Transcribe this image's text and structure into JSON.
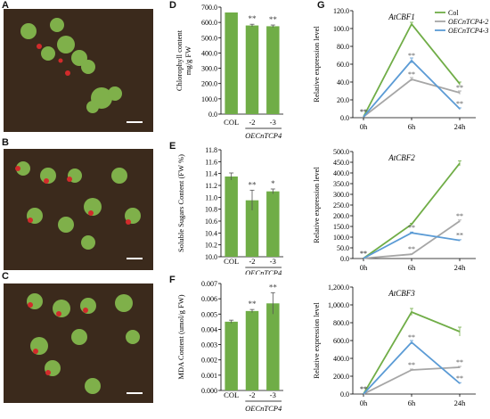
{
  "panel_letters": {
    "A": "A",
    "B": "B",
    "C": "C",
    "D": "D",
    "E": "E",
    "F": "F",
    "G": "G"
  },
  "colors": {
    "bar": "#70ad47",
    "col": "#70ad47",
    "oe2": "#a6a6a6",
    "oe3": "#5b9bd5",
    "soil": "#3b2a1c"
  },
  "chart_data": [
    {
      "id": "D",
      "type": "bar",
      "categories": [
        "COL",
        "-2",
        "-3"
      ],
      "values": [
        665,
        580,
        575
      ],
      "errors": [
        0,
        8,
        8
      ],
      "sig": [
        "",
        "**",
        "**"
      ],
      "ylabel": "Chlorophyll content\nmg/g FW",
      "ylim": [
        0,
        700
      ],
      "yticks": [
        "0.0",
        "100.0",
        "200.0",
        "300.0",
        "400.0",
        "500.0",
        "600.0",
        "700.0"
      ],
      "group_label": "OECnTCP4"
    },
    {
      "id": "E",
      "type": "bar",
      "categories": [
        "COL",
        "-2",
        "-3"
      ],
      "values": [
        11.35,
        10.95,
        11.1
      ],
      "errors": [
        0.06,
        0.17,
        0.04
      ],
      "sig": [
        "",
        "**",
        "*"
      ],
      "ylabel": "Soluble Sugars Content (FW %)",
      "ylim": [
        10.0,
        11.8
      ],
      "yticks": [
        "10.0",
        "10.2",
        "10.4",
        "10.6",
        "10.8",
        "11.0",
        "11.2",
        "11.4",
        "11.6",
        "11.8"
      ],
      "group_label": "OECnTCP4"
    },
    {
      "id": "F",
      "type": "bar",
      "categories": [
        "COL",
        "-2",
        "-3"
      ],
      "values": [
        0.0045,
        0.0052,
        0.0057
      ],
      "errors": [
        0.0001,
        0.0001,
        0.0007
      ],
      "sig": [
        "",
        "**",
        "**"
      ],
      "ylabel": "MDA Content (umol/g FW)",
      "ylim": [
        0,
        0.007
      ],
      "yticks": [
        "0.000",
        "0.001",
        "0.002",
        "0.003",
        "0.004",
        "0.005",
        "0.006",
        "0.007"
      ],
      "group_label": "OECnTCP4"
    },
    {
      "id": "G1",
      "type": "line",
      "title": "AtCBF1",
      "x": [
        "0h",
        "6h",
        "24h"
      ],
      "ylabel": "Relative expression level",
      "ylim": [
        0,
        120
      ],
      "yticks": [
        "0.0",
        "20.0",
        "40.0",
        "60.0",
        "80.0",
        "100.0",
        "120.0"
      ],
      "series": [
        {
          "name": "Col",
          "values": [
            1,
            105,
            38
          ],
          "errors": [
            0,
            2,
            2
          ],
          "sig": [
            "",
            "",
            ""
          ]
        },
        {
          "name": "OECnTCP4-2",
          "values": [
            1,
            43,
            28
          ],
          "errors": [
            0,
            2,
            2
          ],
          "sig": [
            "**",
            "**",
            "**"
          ]
        },
        {
          "name": "OECnTCP4-3",
          "values": [
            1,
            64,
            10
          ],
          "errors": [
            0,
            3,
            1
          ],
          "sig": [
            "**",
            "**",
            "**"
          ]
        }
      ],
      "legend": "top-right"
    },
    {
      "id": "G2",
      "type": "line",
      "title": "AtCBF2",
      "x": [
        "0h",
        "6h",
        "24h"
      ],
      "ylabel": "Relative expression level",
      "ylim": [
        0,
        500
      ],
      "yticks": [
        "0.0",
        "50.0",
        "100.0",
        "150.0",
        "200.0",
        "250.0",
        "300.0",
        "350.0",
        "400.0",
        "450.0",
        "500.0"
      ],
      "series": [
        {
          "name": "Col",
          "values": [
            1,
            160,
            445
          ],
          "errors": [
            0,
            5,
            12
          ],
          "sig": [
            "",
            "",
            ""
          ]
        },
        {
          "name": "OECnTCP4-2",
          "values": [
            1,
            20,
            175
          ],
          "errors": [
            0,
            2,
            5
          ],
          "sig": [
            "**",
            "**",
            "**"
          ]
        },
        {
          "name": "OECnTCP4-3",
          "values": [
            1,
            120,
            85
          ],
          "errors": [
            0,
            4,
            3
          ],
          "sig": [
            "**",
            "**",
            "**"
          ]
        }
      ]
    },
    {
      "id": "G3",
      "type": "line",
      "title": "AtCBF3",
      "x": [
        "0h",
        "6h",
        "24h"
      ],
      "ylabel": "Relative expression level",
      "ylim": [
        0,
        1200
      ],
      "yticks": [
        "0.0",
        "200.0",
        "400.0",
        "600.0",
        "800.0",
        "1,000.0",
        "1,200.0"
      ],
      "series": [
        {
          "name": "Col",
          "values": [
            1,
            920,
            700
          ],
          "errors": [
            0,
            40,
            50
          ],
          "sig": [
            "",
            "",
            ""
          ]
        },
        {
          "name": "OECnTCP4-2",
          "values": [
            1,
            270,
            300
          ],
          "errors": [
            0,
            10,
            10
          ],
          "sig": [
            "**",
            "**",
            "**"
          ]
        },
        {
          "name": "OECnTCP4-3",
          "values": [
            1,
            580,
            120
          ],
          "errors": [
            0,
            20,
            8
          ],
          "sig": [
            "**",
            "**",
            "**"
          ]
        }
      ]
    }
  ]
}
